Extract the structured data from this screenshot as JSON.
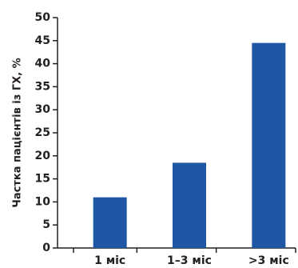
{
  "chart_data": {
    "type": "bar",
    "title": "",
    "xlabel": "",
    "ylabel": "Частка пацієнтів із ГХ, %",
    "categories": [
      "1 міс",
      "1–3 міс",
      ">3 міс"
    ],
    "values": [
      11,
      18.5,
      44.5
    ],
    "ylim": [
      0,
      50
    ],
    "yticks": [
      0,
      5,
      10,
      15,
      20,
      25,
      30,
      35,
      40,
      45,
      50
    ],
    "grid": false,
    "legend": "none",
    "bar_color": "#1f57a4",
    "axis_color": "#231f20"
  }
}
